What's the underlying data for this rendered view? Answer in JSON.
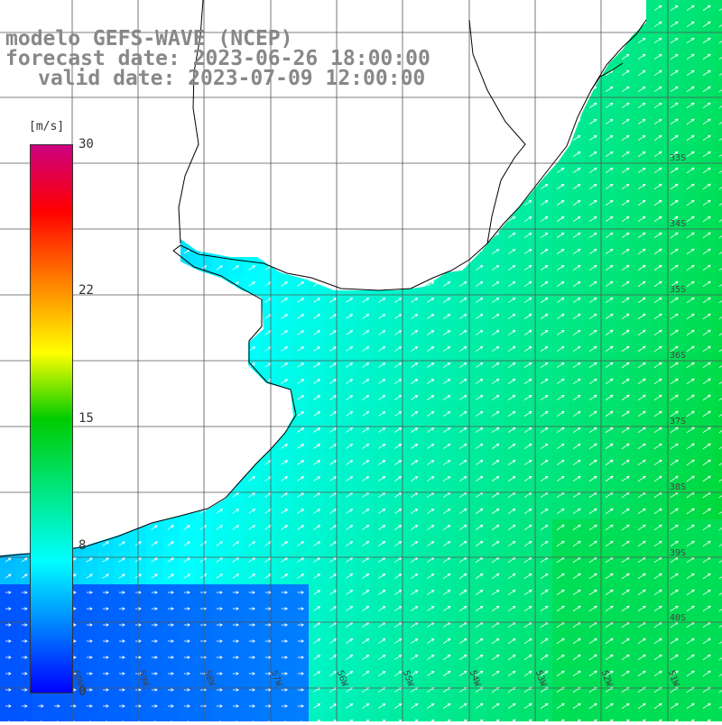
{
  "title": {
    "line1": "modelo GEFS-WAVE (NCEP)",
    "line2": "forecast date: 2023-06-26 18:00:00",
    "line3": "valid date: 2023-07-09 12:00:00"
  },
  "colorbar": {
    "unit": "[m/s]",
    "min": 0,
    "max": 30,
    "ticks": [
      "30",
      "22",
      "15",
      "8",
      "0"
    ],
    "colors": [
      "#0000ff",
      "#00ffff",
      "#00cc00",
      "#ffff00",
      "#ff8000",
      "#ff0000",
      "#cc0080"
    ]
  },
  "grid": {
    "lat_labels": [
      "33S",
      "34S",
      "35S",
      "36S",
      "37S",
      "38S",
      "39S",
      "40S"
    ],
    "lon_labels": [
      "60W",
      "59W",
      "58W",
      "57W",
      "56W",
      "55W",
      "54W",
      "53W",
      "52W",
      "51W"
    ]
  },
  "colors": {
    "land": "#ffffff",
    "coast": "#000000",
    "gridline": "#555555",
    "arrow": "#ffffff"
  },
  "field": {
    "variable": "wind speed",
    "arrow_direction": "northeast"
  }
}
